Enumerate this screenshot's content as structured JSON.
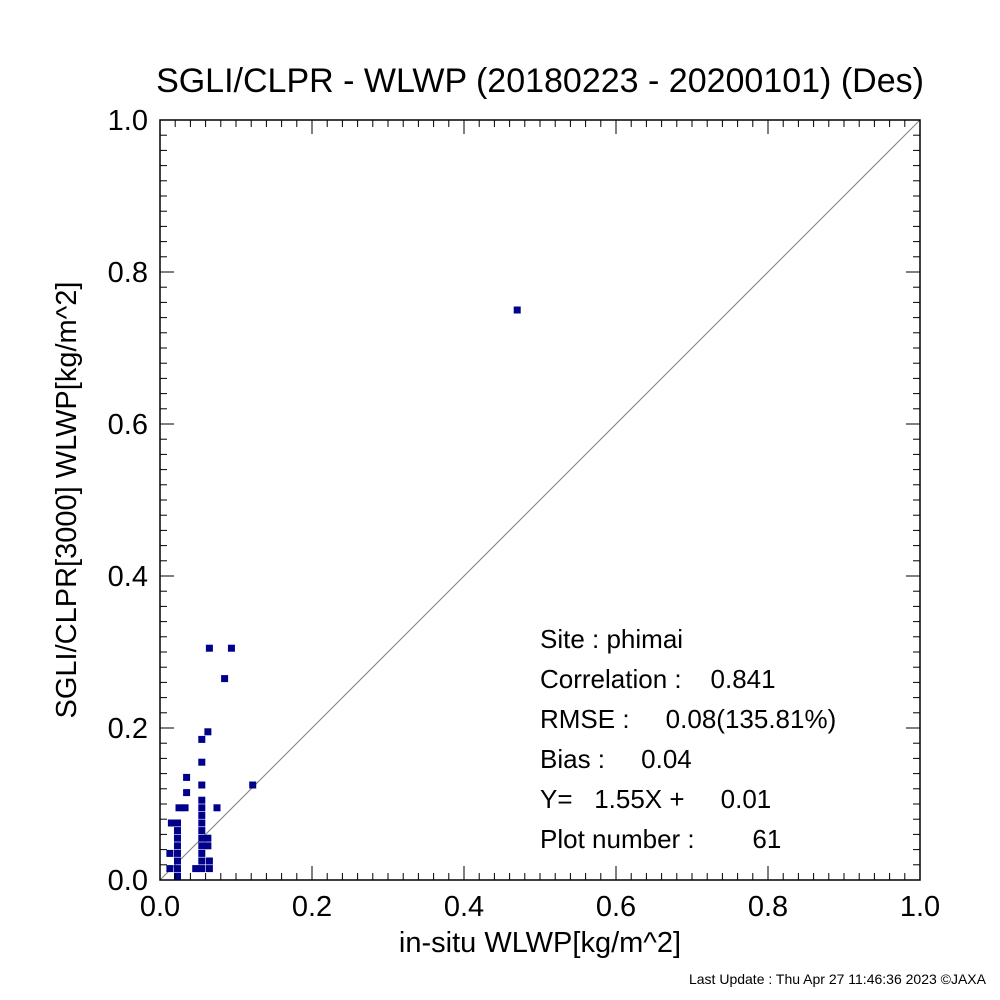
{
  "chart_data": {
    "type": "scatter",
    "title": "SGLI/CLPR - WLWP (20180223 - 20200101) (Des)",
    "xlabel": "in-situ WLWP[kg/m^2]",
    "ylabel": "SGLI/CLPR[3000]    WLWP[kg/m^2]",
    "xlim": [
      0.0,
      1.0
    ],
    "ylim": [
      0.0,
      1.0
    ],
    "x_ticks": [
      "0.0",
      "0.2",
      "0.4",
      "0.6",
      "0.8",
      "1.0"
    ],
    "y_ticks": [
      "0.0",
      "0.2",
      "0.4",
      "0.6",
      "0.8",
      "1.0"
    ],
    "grid": false,
    "reference_line": "1:1",
    "marker_color": "#00008b",
    "line_color": "#808080",
    "points": [
      {
        "x": 0.47,
        "y": 0.75
      },
      {
        "x": 0.065,
        "y": 0.305
      },
      {
        "x": 0.094,
        "y": 0.305
      },
      {
        "x": 0.085,
        "y": 0.265
      },
      {
        "x": 0.063,
        "y": 0.195
      },
      {
        "x": 0.055,
        "y": 0.185
      },
      {
        "x": 0.055,
        "y": 0.155
      },
      {
        "x": 0.035,
        "y": 0.135
      },
      {
        "x": 0.055,
        "y": 0.125
      },
      {
        "x": 0.122,
        "y": 0.125
      },
      {
        "x": 0.035,
        "y": 0.115
      },
      {
        "x": 0.055,
        "y": 0.105
      },
      {
        "x": 0.025,
        "y": 0.095
      },
      {
        "x": 0.033,
        "y": 0.095
      },
      {
        "x": 0.055,
        "y": 0.095
      },
      {
        "x": 0.075,
        "y": 0.095
      },
      {
        "x": 0.055,
        "y": 0.085
      },
      {
        "x": 0.015,
        "y": 0.075
      },
      {
        "x": 0.023,
        "y": 0.075
      },
      {
        "x": 0.055,
        "y": 0.075
      },
      {
        "x": 0.023,
        "y": 0.065
      },
      {
        "x": 0.055,
        "y": 0.065
      },
      {
        "x": 0.023,
        "y": 0.055
      },
      {
        "x": 0.055,
        "y": 0.055
      },
      {
        "x": 0.063,
        "y": 0.055
      },
      {
        "x": 0.023,
        "y": 0.045
      },
      {
        "x": 0.055,
        "y": 0.045
      },
      {
        "x": 0.063,
        "y": 0.045
      },
      {
        "x": 0.013,
        "y": 0.035
      },
      {
        "x": 0.023,
        "y": 0.035
      },
      {
        "x": 0.055,
        "y": 0.035
      },
      {
        "x": 0.023,
        "y": 0.025
      },
      {
        "x": 0.055,
        "y": 0.025
      },
      {
        "x": 0.065,
        "y": 0.025
      },
      {
        "x": 0.013,
        "y": 0.015
      },
      {
        "x": 0.023,
        "y": 0.015
      },
      {
        "x": 0.047,
        "y": 0.015
      },
      {
        "x": 0.055,
        "y": 0.015
      },
      {
        "x": 0.065,
        "y": 0.015
      },
      {
        "x": 0.023,
        "y": 0.005
      }
    ]
  },
  "stats": {
    "site": "Site : phimai",
    "correlation": "Correlation :    0.841",
    "rmse": "RMSE :     0.08(135.81%)",
    "bias": "Bias :     0.04",
    "regression": "Y=   1.55X +     0.01",
    "plot_number": "Plot number :        61"
  },
  "footer": {
    "last_update": "Last Update : Thu Apr 27 11:46:36 2023  ©JAXA"
  }
}
